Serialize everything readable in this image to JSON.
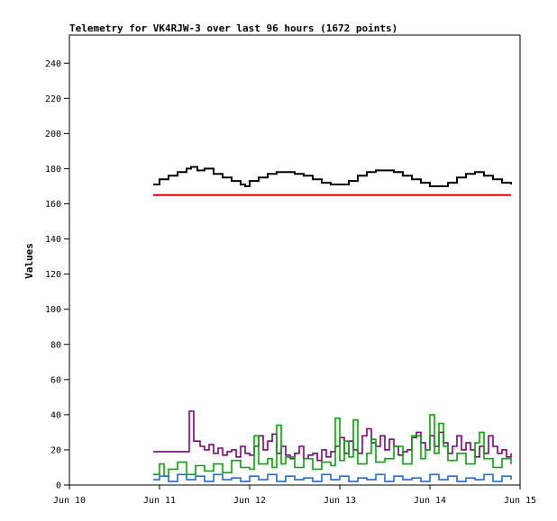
{
  "chart_data": {
    "type": "line",
    "title": "Telemetry for VK4RJW-3 over last 96 hours (1672 points)",
    "ylabel": "Values",
    "xlabel": "",
    "x_ticks": [
      "Jun 10",
      "Jun 11",
      "Jun 12",
      "Jun 13",
      "Jun 14",
      "Jun 15"
    ],
    "x_tick_values": [
      0,
      1,
      2,
      3,
      4,
      5
    ],
    "xlim": [
      0,
      5
    ],
    "y_ticks": [
      "0",
      "20",
      "40",
      "60",
      "80",
      "100",
      "120",
      "140",
      "160",
      "180",
      "200",
      "220",
      "240"
    ],
    "ylim": [
      0,
      256
    ],
    "grid": false,
    "legend": "none",
    "series": [
      {
        "color": "#000000",
        "x": [
          0.93,
          1.0,
          1.1,
          1.2,
          1.3,
          1.35,
          1.42,
          1.5,
          1.6,
          1.7,
          1.8,
          1.9,
          1.95,
          2.0,
          2.1,
          2.2,
          2.3,
          2.4,
          2.5,
          2.6,
          2.7,
          2.8,
          2.9,
          3.0,
          3.1,
          3.2,
          3.3,
          3.4,
          3.5,
          3.6,
          3.7,
          3.8,
          3.9,
          4.0,
          4.1,
          4.2,
          4.3,
          4.4,
          4.5,
          4.6,
          4.7,
          4.8,
          4.9
        ],
        "values": [
          171,
          174,
          176,
          178,
          180,
          181,
          179,
          180,
          177,
          175,
          173,
          171,
          170,
          173,
          175,
          177,
          178,
          178,
          177,
          176,
          174,
          172,
          171,
          171,
          173,
          176,
          178,
          179,
          179,
          178,
          176,
          174,
          172,
          170,
          170,
          172,
          175,
          177,
          178,
          176,
          174,
          172,
          171
        ]
      },
      {
        "color": "#e00000",
        "x": [
          0.93,
          4.9
        ],
        "values": [
          165,
          165
        ]
      },
      {
        "color": "#800080",
        "x": [
          0.93,
          1.1,
          1.25,
          1.31,
          1.33,
          1.38,
          1.45,
          1.5,
          1.55,
          1.6,
          1.65,
          1.7,
          1.75,
          1.8,
          1.85,
          1.9,
          1.95,
          2.0,
          2.05,
          2.1,
          2.15,
          2.2,
          2.25,
          2.3,
          2.35,
          2.4,
          2.45,
          2.5,
          2.55,
          2.6,
          2.65,
          2.7,
          2.75,
          2.8,
          2.85,
          2.9,
          2.95,
          3.0,
          3.05,
          3.1,
          3.15,
          3.2,
          3.25,
          3.3,
          3.35,
          3.4,
          3.45,
          3.5,
          3.55,
          3.6,
          3.65,
          3.7,
          3.75,
          3.8,
          3.85,
          3.9,
          3.95,
          4.0,
          4.05,
          4.1,
          4.15,
          4.2,
          4.25,
          4.3,
          4.35,
          4.4,
          4.45,
          4.5,
          4.55,
          4.6,
          4.65,
          4.7,
          4.75,
          4.8,
          4.85,
          4.9
        ],
        "values": [
          19,
          19,
          19,
          19,
          42,
          25,
          22,
          20,
          23,
          18,
          21,
          17,
          19,
          20,
          16,
          22,
          18,
          17,
          22,
          28,
          20,
          25,
          29,
          18,
          22,
          17,
          15,
          18,
          22,
          15,
          17,
          18,
          14,
          20,
          16,
          19,
          22,
          27,
          18,
          25,
          20,
          18,
          28,
          32,
          24,
          22,
          28,
          20,
          26,
          22,
          17,
          19,
          20,
          27,
          30,
          24,
          20,
          28,
          22,
          30,
          24,
          18,
          22,
          28,
          20,
          24,
          20,
          16,
          22,
          18,
          28,
          22,
          18,
          20,
          16,
          18
        ]
      },
      {
        "color": "#00aa00",
        "x": [
          0.93,
          1.0,
          1.05,
          1.1,
          1.2,
          1.3,
          1.4,
          1.5,
          1.6,
          1.7,
          1.8,
          1.9,
          2.0,
          2.05,
          2.1,
          2.2,
          2.25,
          2.3,
          2.35,
          2.4,
          2.5,
          2.6,
          2.7,
          2.8,
          2.9,
          2.95,
          3.0,
          3.05,
          3.1,
          3.15,
          3.2,
          3.3,
          3.35,
          3.4,
          3.5,
          3.6,
          3.7,
          3.8,
          3.9,
          3.95,
          4.0,
          4.05,
          4.1,
          4.15,
          4.2,
          4.3,
          4.4,
          4.5,
          4.55,
          4.6,
          4.7,
          4.8,
          4.9
        ],
        "values": [
          6,
          12,
          5,
          9,
          13,
          6,
          11,
          8,
          12,
          7,
          14,
          10,
          9,
          28,
          12,
          15,
          10,
          34,
          12,
          16,
          10,
          15,
          9,
          13,
          11,
          38,
          14,
          25,
          16,
          37,
          12,
          18,
          26,
          13,
          15,
          22,
          12,
          28,
          15,
          20,
          40,
          18,
          35,
          22,
          14,
          18,
          12,
          24,
          30,
          15,
          10,
          15,
          12
        ]
      },
      {
        "color": "#1a6fd6",
        "x": [
          0.93,
          1.0,
          1.1,
          1.2,
          1.3,
          1.4,
          1.5,
          1.6,
          1.7,
          1.8,
          1.9,
          2.0,
          2.1,
          2.2,
          2.3,
          2.4,
          2.5,
          2.6,
          2.7,
          2.8,
          2.9,
          3.0,
          3.1,
          3.2,
          3.3,
          3.4,
          3.5,
          3.6,
          3.7,
          3.8,
          3.9,
          4.0,
          4.1,
          4.2,
          4.3,
          4.4,
          4.5,
          4.6,
          4.7,
          4.8,
          4.9
        ],
        "values": [
          3,
          5,
          2,
          6,
          3,
          5,
          2,
          6,
          3,
          4,
          2,
          5,
          3,
          6,
          2,
          5,
          3,
          4,
          2,
          6,
          3,
          5,
          2,
          4,
          3,
          6,
          2,
          5,
          3,
          4,
          2,
          6,
          3,
          5,
          2,
          4,
          3,
          6,
          2,
          5,
          3
        ]
      }
    ]
  }
}
